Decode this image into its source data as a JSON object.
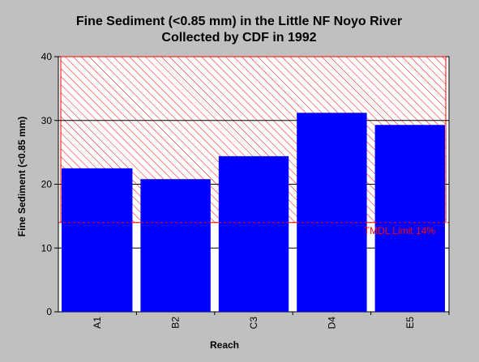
{
  "chart_data": {
    "type": "bar",
    "title_line1": "Fine Sediment (<0.85 mm) in the Little NF Noyo River",
    "title_line2": "Collected by CDF in 1992",
    "xlabel": "Reach",
    "ylabel": "Fine Sediment (<0.85 mm)",
    "categories": [
      "A1",
      "B2",
      "C3",
      "D4",
      "E5"
    ],
    "values": [
      22.5,
      20.8,
      24.4,
      31.2,
      29.3
    ],
    "ylim": [
      0,
      40
    ],
    "yticks": [
      0,
      10,
      20,
      30,
      40
    ],
    "grid": "horizontal",
    "bar_color": "#0000ff",
    "threshold": {
      "label": "TMDL Limit 14%",
      "value": 14,
      "color": "#ff0000",
      "hatched_region": [
        14,
        40
      ]
    },
    "plot_background": "#ffffff",
    "page_background": "#c0c0c0"
  }
}
